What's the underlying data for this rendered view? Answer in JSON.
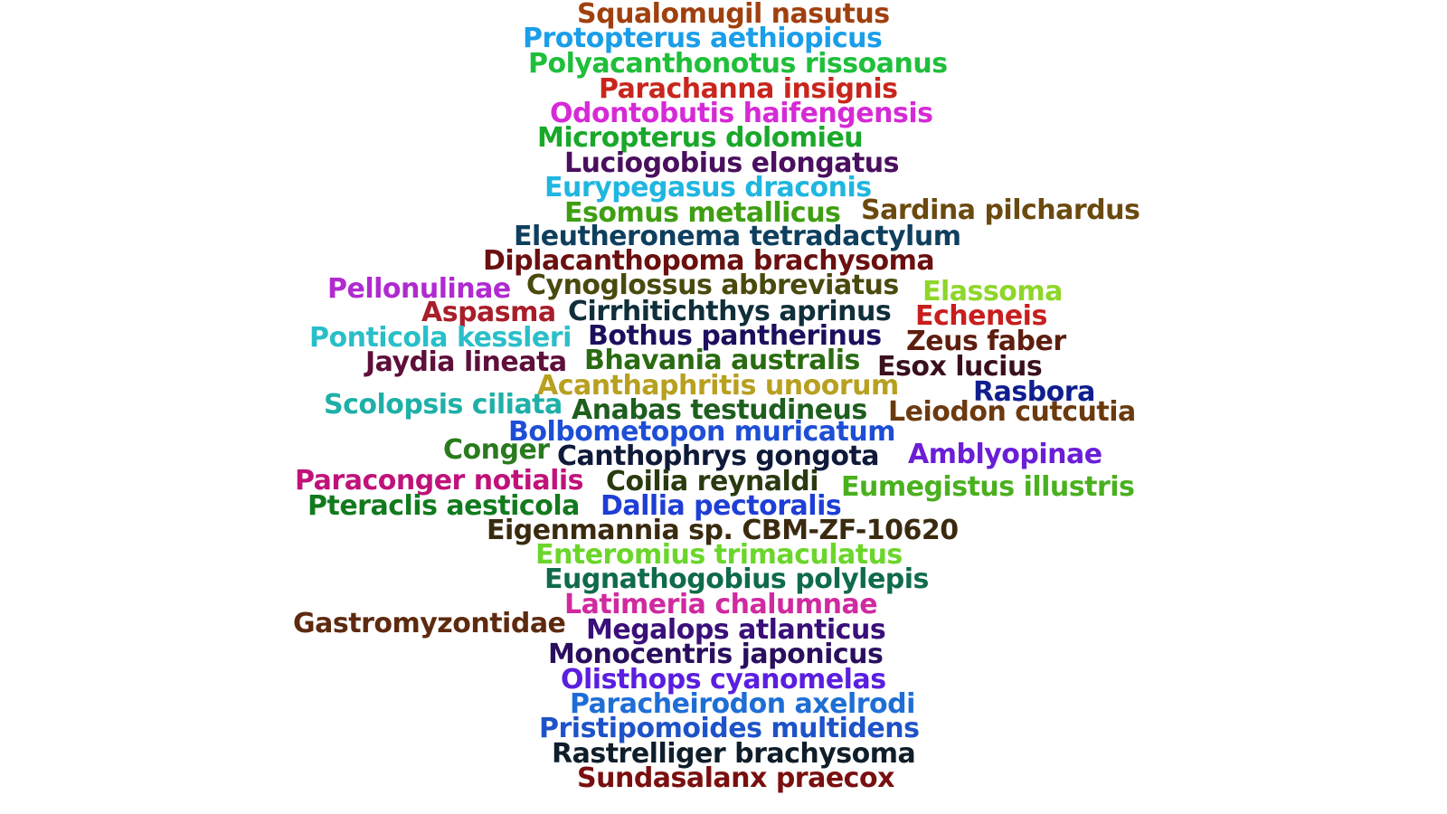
{
  "words": [
    {
      "text": "Squalomugil nasutus",
      "color": "#a0400f"
    },
    {
      "text": "Protopterus aethiopicus",
      "color": "#1a9ee8"
    },
    {
      "text": "Polyacanthonotus rissoanus",
      "color": "#1fbf3a"
    },
    {
      "text": "Parachanna insignis",
      "color": "#c8261d"
    },
    {
      "text": "Odontobutis haifengensis",
      "color": "#d62ad6"
    },
    {
      "text": "Micropterus dolomieu",
      "color": "#1aa82a"
    },
    {
      "text": "Luciogobius elongatus",
      "color": "#4a0f5e"
    },
    {
      "text": "Eurypegasus draconis",
      "color": "#1fb6e0"
    },
    {
      "text": "Esomus metallicus",
      "color": "#3f9e12"
    },
    {
      "text": "Sardina pilchardus",
      "color": "#6b4a0f"
    },
    {
      "text": "Eleutheronema tetradactylum",
      "color": "#0f3f5e"
    },
    {
      "text": "Diplacanthopoma brachysoma",
      "color": "#6b0f0f"
    },
    {
      "text": "Pellonulinae",
      "color": "#b02ad0"
    },
    {
      "text": "Cynoglossus abbreviatus",
      "color": "#4a4a0f"
    },
    {
      "text": "Elassoma",
      "color": "#8ed62a"
    },
    {
      "text": "Aspasma",
      "color": "#a81e2a"
    },
    {
      "text": "Cirrhitichthys aprinus",
      "color": "#0f2f3a"
    },
    {
      "text": "Echeneis",
      "color": "#c81e1e"
    },
    {
      "text": "Ponticola kessleri",
      "color": "#2abfc8"
    },
    {
      "text": "Bothus pantherinus",
      "color": "#1e0f5e"
    },
    {
      "text": "Zeus faber",
      "color": "#5e1e0f"
    },
    {
      "text": "Jaydia lineata",
      "color": "#5e0f3a"
    },
    {
      "text": "Bhavania australis",
      "color": "#2a6b12"
    },
    {
      "text": "Esox lucius",
      "color": "#3a0f1e"
    },
    {
      "text": "Acanthaphritis unoorum",
      "color": "#b8a020"
    },
    {
      "text": "Rasbora",
      "color": "#0f1e8e"
    },
    {
      "text": "Scolopsis ciliata",
      "color": "#1eb0a8"
    },
    {
      "text": "Anabas testudineus",
      "color": "#1e5e1e"
    },
    {
      "text": "Leiodon cutcutia",
      "color": "#6b3a0f"
    },
    {
      "text": "Bolbometopon muricatum",
      "color": "#1e4ed6"
    },
    {
      "text": "Conger",
      "color": "#2a7a1e"
    },
    {
      "text": "Canthophrys gongota",
      "color": "#0f1a3a"
    },
    {
      "text": "Amblyopinae",
      "color": "#6b1ed6"
    },
    {
      "text": "Paraconger notialis",
      "color": "#c0127a"
    },
    {
      "text": "Coilia reynaldi",
      "color": "#2a3a0f"
    },
    {
      "text": "Eumegistus illustris",
      "color": "#4ab01e"
    },
    {
      "text": "Pteraclis aesticola",
      "color": "#127a1e"
    },
    {
      "text": "Dallia pectoralis",
      "color": "#1e3ed6"
    },
    {
      "text": "Eigenmannia sp. CBM-ZF-10620",
      "color": "#3a2a0f"
    },
    {
      "text": "Enteromius trimaculatus",
      "color": "#6bd62a"
    },
    {
      "text": "Eugnathogobius polylepis",
      "color": "#0f6b4a"
    },
    {
      "text": "Latimeria chalumnae",
      "color": "#d02aa0"
    },
    {
      "text": "Gastromyzontidae",
      "color": "#5e2a0f"
    },
    {
      "text": "Megalops atlanticus",
      "color": "#3a0f7a"
    },
    {
      "text": "Monocentris japonicus",
      "color": "#2a0f5e"
    },
    {
      "text": "Olisthops cyanomelas",
      "color": "#5a1ee0"
    },
    {
      "text": "Paracheirodon axelrodi",
      "color": "#1e6ed6"
    },
    {
      "text": "Pristipomoides multidens",
      "color": "#1e52c8"
    },
    {
      "text": "Rastrelliger brachysoma",
      "color": "#0f1e2a"
    },
    {
      "text": "Sundasalanx praecox",
      "color": "#7a0f0f"
    }
  ]
}
